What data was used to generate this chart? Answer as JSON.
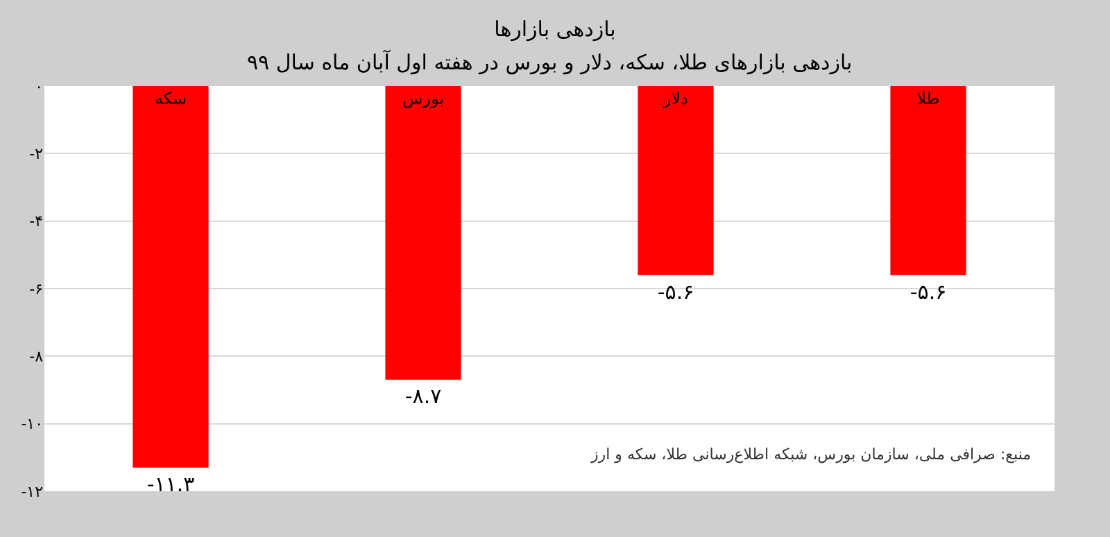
{
  "chart_data": {
    "type": "bar",
    "title": "بازدهی بازارها",
    "subtitle": "بازدهی بازارهای طلا، سکه، دلار و بورس در هفته اول آبان ماه سال ۹۹",
    "categories": [
      "سکه",
      "بورس",
      "دلار",
      "طلا"
    ],
    "values": [
      -11.3,
      -8.7,
      -5.6,
      -5.6
    ],
    "value_labels": [
      "-۱۱.۳",
      "-۸.۷",
      "-۵.۶",
      "-۵.۶"
    ],
    "color": "#ff0000",
    "ylim": [
      -12,
      0
    ],
    "yticks": [
      {
        "value": 0,
        "label": "۰"
      },
      {
        "value": -2,
        "label": "-۲"
      },
      {
        "value": -4,
        "label": "-۴"
      },
      {
        "value": -6,
        "label": "-۶"
      },
      {
        "value": -8,
        "label": "-۸"
      },
      {
        "value": -10,
        "label": "-۱۰"
      },
      {
        "value": -12,
        "label": "-۱۲"
      }
    ],
    "grid": "y",
    "legend": false,
    "annotations": [
      {
        "text": "منبع: صرافی ملی، سازمان بورس، شبکه اطلاع‌رسانی طلا، سکه و ارز"
      }
    ]
  }
}
